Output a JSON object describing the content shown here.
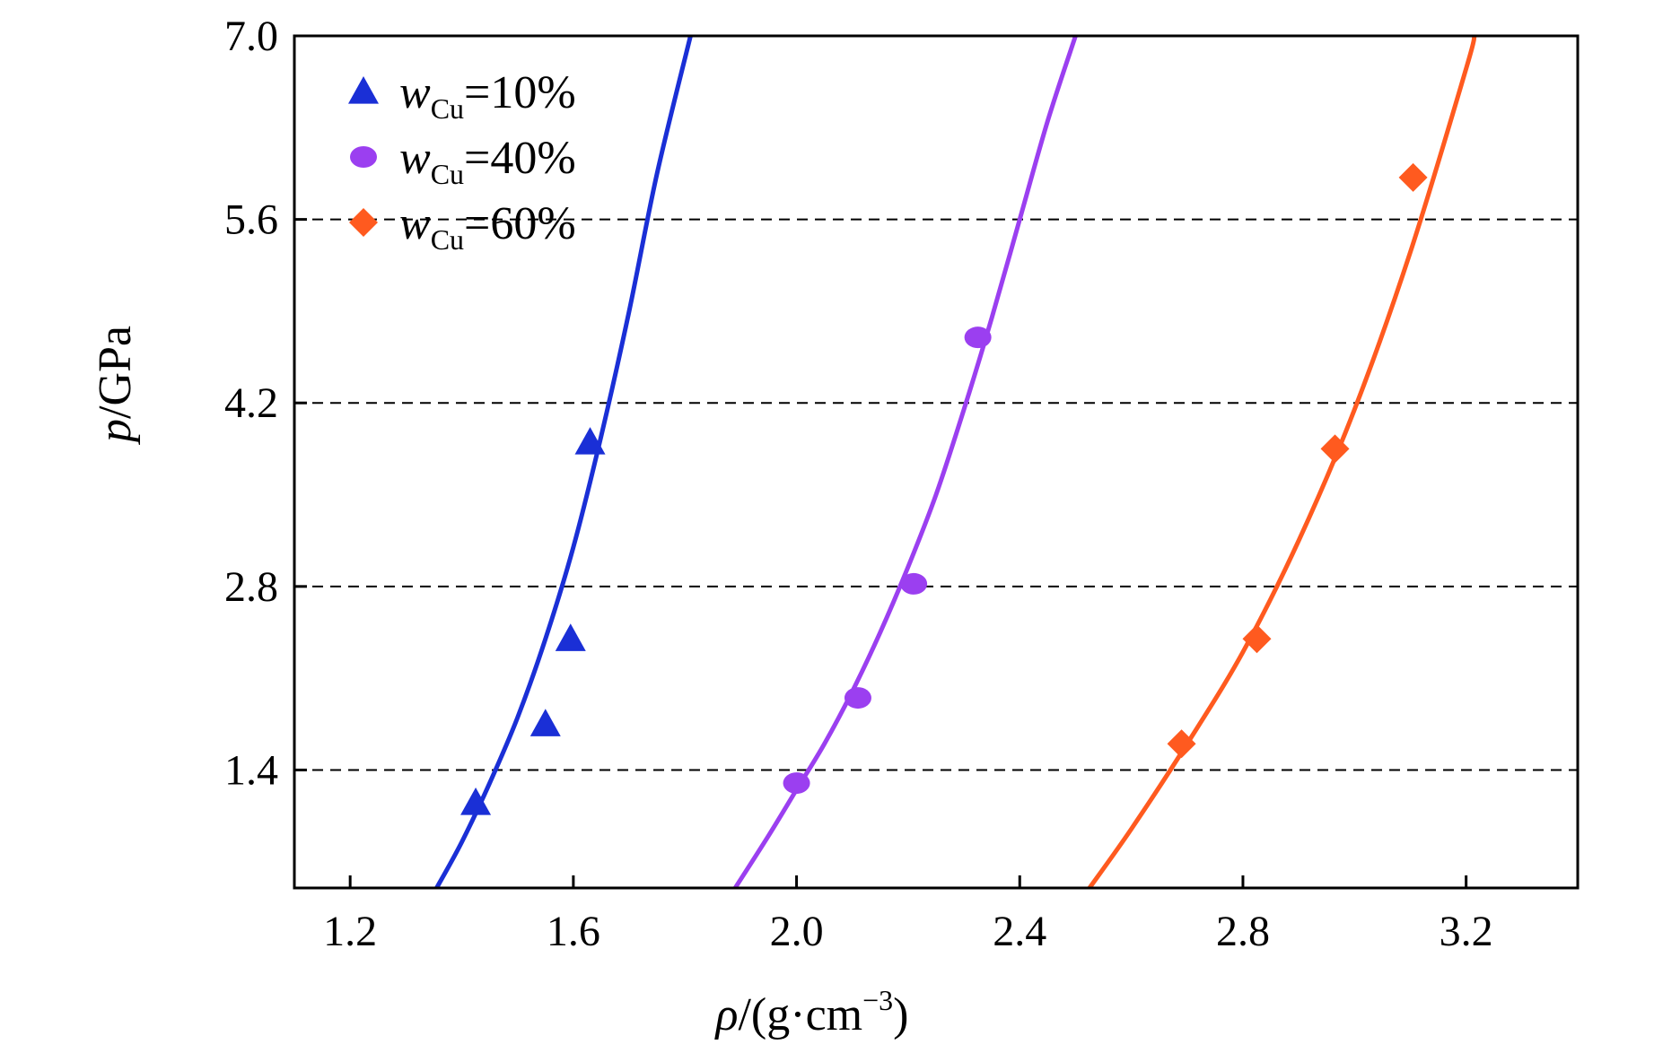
{
  "chart_data": {
    "type": "scatter",
    "title": "",
    "xlabel": {
      "symbol": "ρ",
      "unit_prefix": "/(g·cm",
      "unit_sup": "−3",
      "unit_suffix": ")"
    },
    "ylabel": {
      "symbol": "p",
      "unit": "/GPa"
    },
    "xlim": [
      1.1,
      3.4
    ],
    "ylim": [
      0.5,
      7.0
    ],
    "x_ticks": [
      1.2,
      1.6,
      2.0,
      2.4,
      2.8,
      3.2
    ],
    "x_tick_labels": [
      "1.2",
      "1.6",
      "2.0",
      "2.4",
      "2.8",
      "3.2"
    ],
    "y_ticks": [
      1.4,
      2.8,
      4.2,
      5.6,
      7.0
    ],
    "y_tick_labels": [
      "1.4",
      "2.8",
      "4.2",
      "5.6",
      "7.0"
    ],
    "grid": {
      "horizontal_dashed": [
        1.4,
        2.8,
        4.2,
        5.6
      ]
    },
    "legend_position": "top-left",
    "series": [
      {
        "name": {
          "base": "w",
          "sub": "Cu",
          "rest": "=10%"
        },
        "marker": "triangle",
        "color": "#1a2fd6",
        "points": [
          [
            1.425,
            1.15
          ],
          [
            1.55,
            1.75
          ],
          [
            1.595,
            2.4
          ],
          [
            1.63,
            3.9
          ]
        ],
        "fit_curve": [
          [
            1.355,
            0.5
          ],
          [
            1.4,
            0.85
          ],
          [
            1.45,
            1.3
          ],
          [
            1.5,
            1.8
          ],
          [
            1.55,
            2.4
          ],
          [
            1.6,
            3.1
          ],
          [
            1.65,
            3.95
          ],
          [
            1.7,
            4.9
          ],
          [
            1.75,
            5.95
          ],
          [
            1.81,
            7.0
          ]
        ]
      },
      {
        "name": {
          "base": "w",
          "sub": "Cu",
          "rest": "=40%"
        },
        "marker": "circle",
        "color": "#9b3ff0",
        "points": [
          [
            2.0,
            1.3
          ],
          [
            2.11,
            1.95
          ],
          [
            2.21,
            2.82
          ],
          [
            2.325,
            4.7
          ]
        ],
        "fit_curve": [
          [
            1.89,
            0.5
          ],
          [
            1.95,
            0.9
          ],
          [
            2.0,
            1.25
          ],
          [
            2.05,
            1.6
          ],
          [
            2.1,
            2.0
          ],
          [
            2.15,
            2.45
          ],
          [
            2.2,
            2.95
          ],
          [
            2.25,
            3.5
          ],
          [
            2.3,
            4.15
          ],
          [
            2.35,
            4.85
          ],
          [
            2.4,
            5.6
          ],
          [
            2.45,
            6.35
          ],
          [
            2.5,
            7.0
          ]
        ]
      },
      {
        "name": {
          "base": "w",
          "sub": "Cu",
          "rest": "=60%"
        },
        "marker": "diamond",
        "color": "#ff5a1f",
        "points": [
          [
            2.69,
            1.6
          ],
          [
            2.825,
            2.4
          ],
          [
            2.965,
            3.85
          ],
          [
            3.105,
            5.92
          ]
        ],
        "fit_curve": [
          [
            2.525,
            0.5
          ],
          [
            2.6,
            0.95
          ],
          [
            2.7,
            1.6
          ],
          [
            2.8,
            2.3
          ],
          [
            2.9,
            3.15
          ],
          [
            3.0,
            4.15
          ],
          [
            3.1,
            5.35
          ],
          [
            3.2,
            6.75
          ],
          [
            3.215,
            7.0
          ]
        ]
      }
    ]
  }
}
